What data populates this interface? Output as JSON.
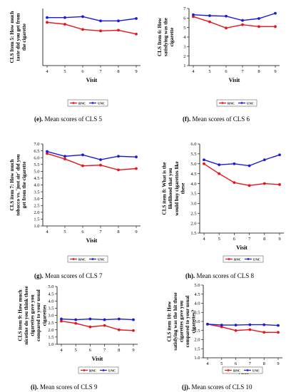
{
  "chart_data": [
    {
      "type": "line",
      "ylabel": [
        "CLS Item 5: How much",
        "taste did you get from",
        "the cigarette"
      ],
      "xlabel": "Visit",
      "x": [
        4,
        5,
        6,
        7,
        8,
        9
      ],
      "ylim": [
        1,
        7
      ],
      "yticks": [],
      "series": [
        {
          "name": "RNC",
          "color": "#e8141b",
          "values": [
            5.55,
            5.35,
            4.8,
            4.65,
            4.72,
            4.32
          ]
        },
        {
          "name": "UNC",
          "color": "#1a1adf",
          "values": [
            6.05,
            6.05,
            6.15,
            5.7,
            5.7,
            5.95
          ]
        }
      ],
      "caption_letter": "(e).",
      "caption_text": " Mean scores of CLS 5"
    },
    {
      "type": "line",
      "ylabel": [
        "CLS Item 6: How",
        "satisfying was the",
        "cigarette"
      ],
      "xlabel": "Visit",
      "x": [
        4,
        5,
        6,
        7,
        8,
        9
      ],
      "ylim": [
        1,
        7
      ],
      "yticks": [
        1,
        2,
        3,
        4,
        5,
        6,
        7
      ],
      "series": [
        {
          "name": "RNC",
          "color": "#e8141b",
          "values": [
            6.15,
            5.6,
            4.95,
            5.3,
            5.1,
            5.1
          ]
        },
        {
          "name": "UNC",
          "color": "#1a1adf",
          "values": [
            6.35,
            6.25,
            6.2,
            5.75,
            5.95,
            6.5
          ]
        }
      ],
      "caption_letter": "(f).",
      "caption_text": " Mean scores of CLS 6"
    },
    {
      "type": "line",
      "ylabel": [
        "CLS item 7: How much",
        "tobacco vs. 'just air' did you",
        "get from the cigarette"
      ],
      "xlabel": "Visit",
      "x": [
        4,
        5,
        6,
        7,
        8,
        9
      ],
      "ylim": [
        1,
        7
      ],
      "yticks": [
        1.0,
        1.5,
        2.0,
        2.5,
        3.0,
        3.5,
        4.0,
        4.5,
        5.0,
        5.5,
        6.0,
        6.5,
        7.0
      ],
      "ytick_labels": [
        "1.0",
        "1.5",
        "2.0",
        "2.5",
        "3.0",
        "3.5",
        "4.0",
        "4.5",
        "5.0",
        "5.5",
        "6.0",
        "6.5",
        "7.0"
      ],
      "series": [
        {
          "name": "RNC",
          "color": "#e8141b",
          "values": [
            6.3,
            5.9,
            5.4,
            5.45,
            5.1,
            5.2
          ]
        },
        {
          "name": "UNC",
          "color": "#1a1adf",
          "values": [
            6.45,
            6.1,
            6.2,
            5.85,
            6.1,
            6.05
          ]
        }
      ],
      "caption_letter": "(g).",
      "caption_text": " Mean scores of CLS 7"
    },
    {
      "type": "line",
      "ylabel": [
        "CLS item 8: What is the",
        "likelihood that you",
        "would buy cigarettes like",
        "these"
      ],
      "xlabel": "Visit",
      "x": [
        4,
        5,
        6,
        7,
        8,
        9
      ],
      "ylim": [
        1.5,
        6
      ],
      "yticks": [
        1.5,
        2.0,
        2.5,
        3.0,
        3.5,
        4.0,
        4.5,
        5.0,
        5.5,
        6.0
      ],
      "ytick_labels": [
        "1.5",
        "2.0",
        "2.5",
        "3.0",
        "3.5",
        "4.0",
        "4.5",
        "5.0",
        "5.5",
        "6.0"
      ],
      "series": [
        {
          "name": "RNC",
          "color": "#e8141b",
          "values": [
            5.0,
            4.5,
            4.05,
            3.9,
            4.0,
            3.95
          ]
        },
        {
          "name": "UNC",
          "color": "#1a1adf",
          "values": [
            5.2,
            4.95,
            5.0,
            4.9,
            5.2,
            5.45
          ]
        }
      ],
      "caption_letter": "(h).",
      "caption_text": " Mean scores of CLS 8"
    },
    {
      "type": "line",
      "ylabel": [
        "CLS item 9: How much",
        "nicotine do you think these",
        "cigarettes gave you",
        "compared to your usual",
        "cigarettes"
      ],
      "xlabel": "Visit",
      "x": [
        4,
        5,
        6,
        7,
        8,
        9
      ],
      "ylim": [
        1,
        5
      ],
      "yticks": [
        1.0,
        1.5,
        2.0,
        2.5,
        3.0,
        3.5,
        4.0,
        4.5,
        5.0
      ],
      "ytick_labels": [
        "1.0",
        "1.5",
        "2.0",
        "2.5",
        "3.0",
        "3.5",
        "4.0",
        "4.5",
        "5.0"
      ],
      "series": [
        {
          "name": "RNC",
          "color": "#e8141b",
          "values": [
            2.6,
            2.45,
            2.2,
            2.3,
            2.0,
            1.95
          ]
        },
        {
          "name": "UNC",
          "color": "#1a1adf",
          "values": [
            2.75,
            2.7,
            2.75,
            2.7,
            2.75,
            2.7
          ]
        }
      ],
      "caption_letter": "(i).",
      "caption_text": " Mean scores of CLS 9"
    },
    {
      "type": "line",
      "ylabel": [
        "CLS item 10: How",
        "satisfying was the hit these",
        "cigarettes gave you",
        "compared to your usual",
        "cigarettes?"
      ],
      "xlabel": "Visit",
      "x": [
        4,
        5,
        6,
        7,
        8,
        9
      ],
      "ylim": [
        1,
        5
      ],
      "yticks": [
        1.0,
        1.5,
        2.0,
        2.5,
        3.0,
        3.5,
        4.0,
        4.5,
        5.0
      ],
      "ytick_labels": [
        "1.0",
        "1.5",
        "2.0",
        "2.5",
        "3.0",
        "3.5",
        "4.0",
        "4.5",
        "5.0"
      ],
      "series": [
        {
          "name": "RNC",
          "color": "#e8141b",
          "values": [
            2.85,
            2.7,
            2.5,
            2.55,
            2.4,
            2.4
          ]
        },
        {
          "name": "UNC",
          "color": "#1a1adf",
          "values": [
            2.85,
            2.8,
            2.8,
            2.82,
            2.82,
            2.78
          ]
        }
      ],
      "caption_letter": "(j).",
      "caption_text": " Mean scores of CLS 10"
    }
  ]
}
